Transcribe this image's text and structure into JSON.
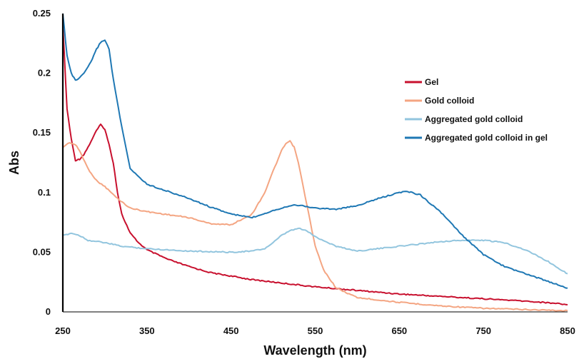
{
  "chart_data": {
    "type": "line",
    "title": "",
    "xlabel": "Wavelength (nm)",
    "ylabel": "Abs",
    "xlim": [
      250,
      850
    ],
    "ylim": [
      0,
      0.25
    ],
    "x_ticks": [
      250,
      350,
      450,
      550,
      650,
      750,
      850
    ],
    "y_ticks": [
      0,
      0.05,
      0.1,
      0.15,
      0.2,
      0.25
    ],
    "x_tick_labels": [
      "250",
      "350",
      "450",
      "550",
      "650",
      "750",
      "850"
    ],
    "y_tick_labels": [
      "0",
      "0.05",
      "0.1",
      "0.15",
      "0.2",
      "0.25"
    ],
    "grid": false,
    "legend_position": "right",
    "series": [
      {
        "name": "Gel",
        "color": "#c8102e",
        "x": [
          250,
          255,
          260,
          265,
          270,
          275,
          280,
          285,
          290,
          295,
          300,
          305,
          310,
          315,
          320,
          330,
          340,
          350,
          375,
          400,
          425,
          450,
          475,
          500,
          525,
          550,
          600,
          650,
          700,
          750,
          800,
          840,
          850
        ],
        "y": [
          0.24,
          0.17,
          0.145,
          0.127,
          0.128,
          0.132,
          0.138,
          0.145,
          0.152,
          0.157,
          0.153,
          0.14,
          0.125,
          0.1,
          0.082,
          0.066,
          0.058,
          0.052,
          0.044,
          0.038,
          0.033,
          0.03,
          0.027,
          0.025,
          0.023,
          0.021,
          0.018,
          0.015,
          0.013,
          0.011,
          0.009,
          0.007,
          0.006
        ]
      },
      {
        "name": "Gold colloid",
        "color": "#f4a582",
        "x": [
          250,
          258,
          265,
          270,
          280,
          290,
          300,
          315,
          330,
          350,
          400,
          425,
          450,
          475,
          490,
          500,
          510,
          515,
          520,
          525,
          530,
          540,
          550,
          560,
          575,
          600,
          650,
          700,
          750,
          800,
          850
        ],
        "y": [
          0.138,
          0.142,
          0.14,
          0.135,
          0.12,
          0.11,
          0.105,
          0.095,
          0.087,
          0.084,
          0.079,
          0.074,
          0.073,
          0.082,
          0.1,
          0.118,
          0.135,
          0.141,
          0.143,
          0.138,
          0.125,
          0.09,
          0.055,
          0.035,
          0.02,
          0.012,
          0.008,
          0.005,
          0.003,
          0.002,
          0.001
        ]
      },
      {
        "name": "Aggregated gold colloid",
        "color": "#92c5de",
        "x": [
          250,
          260,
          270,
          280,
          300,
          320,
          350,
          400,
          450,
          475,
          490,
          500,
          510,
          520,
          530,
          540,
          550,
          575,
          600,
          650,
          700,
          725,
          750,
          775,
          800,
          825,
          850
        ],
        "y": [
          0.064,
          0.066,
          0.064,
          0.06,
          0.058,
          0.055,
          0.053,
          0.051,
          0.05,
          0.051,
          0.053,
          0.058,
          0.064,
          0.068,
          0.07,
          0.068,
          0.063,
          0.055,
          0.051,
          0.055,
          0.059,
          0.06,
          0.06,
          0.058,
          0.052,
          0.043,
          0.032
        ]
      },
      {
        "name": "Aggregated gold colloid in gel",
        "color": "#1f78b4",
        "x": [
          250,
          255,
          260,
          265,
          270,
          275,
          280,
          285,
          290,
          295,
          300,
          305,
          310,
          320,
          330,
          350,
          375,
          400,
          425,
          450,
          475,
          500,
          525,
          550,
          575,
          600,
          625,
          650,
          660,
          675,
          700,
          725,
          750,
          775,
          800,
          825,
          850
        ],
        "y": [
          0.25,
          0.215,
          0.2,
          0.194,
          0.196,
          0.2,
          0.205,
          0.212,
          0.22,
          0.226,
          0.228,
          0.22,
          0.195,
          0.155,
          0.12,
          0.107,
          0.101,
          0.095,
          0.088,
          0.082,
          0.079,
          0.085,
          0.09,
          0.087,
          0.086,
          0.089,
          0.095,
          0.1,
          0.101,
          0.098,
          0.083,
          0.064,
          0.048,
          0.038,
          0.032,
          0.026,
          0.02
        ]
      }
    ]
  }
}
